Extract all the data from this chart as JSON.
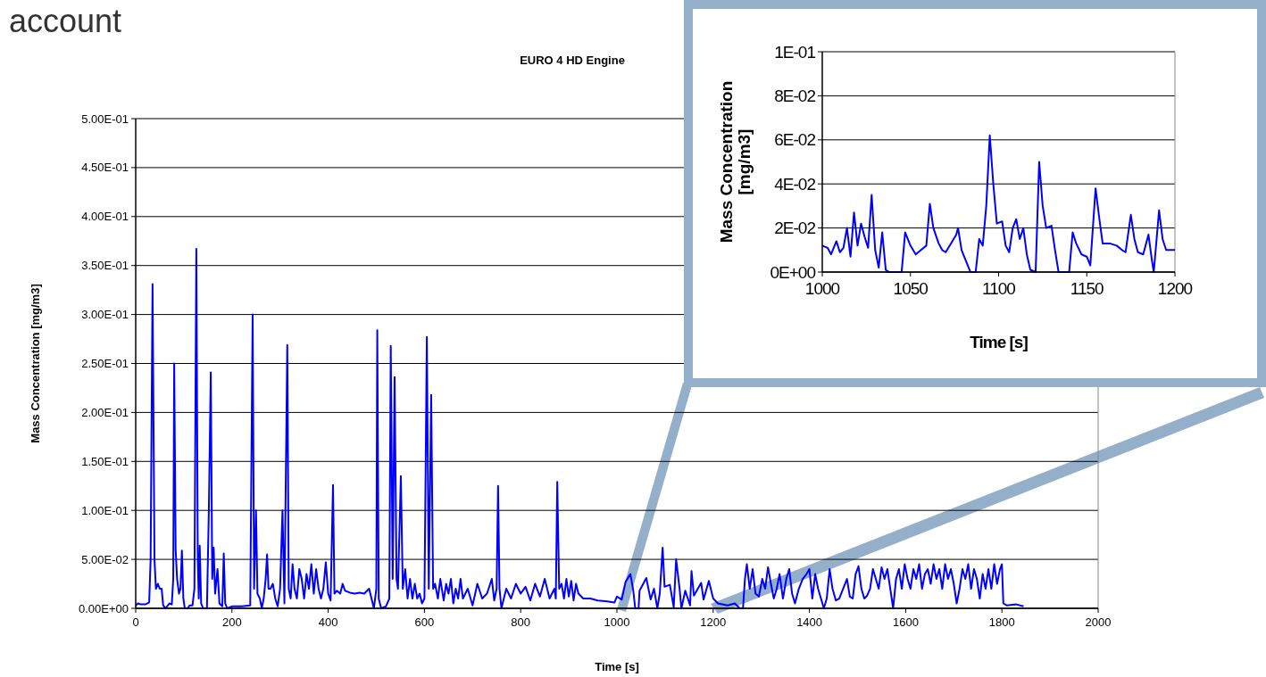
{
  "chart_data": [
    {
      "type": "line",
      "title": "EURO 4 HD Engine",
      "xlabel": "Time [s]",
      "ylabel": "Mass Concentration [mg/m3]",
      "annotations": [
        "account"
      ],
      "xlim": [
        0,
        2000
      ],
      "xticks": [
        0,
        200,
        400,
        600,
        800,
        1000,
        1200,
        1400,
        1600,
        1800,
        2000
      ],
      "ylim": [
        0,
        0.5
      ],
      "yticks": [
        {
          "value": 0,
          "label": "0.00E+00"
        },
        {
          "value": 0.05,
          "label": "5.00E-02"
        },
        {
          "value": 0.1,
          "label": "1.00E-01"
        },
        {
          "value": 0.15,
          "label": "1.50E-01"
        },
        {
          "value": 0.2,
          "label": "2.00E-01"
        },
        {
          "value": 0.25,
          "label": "2.50E-01"
        },
        {
          "value": 0.3,
          "label": "3.00E-01"
        },
        {
          "value": 0.35,
          "label": "3.50E-01"
        },
        {
          "value": 0.4,
          "label": "4.00E-01"
        },
        {
          "value": 0.45,
          "label": "4.50E-01"
        },
        {
          "value": 0.5,
          "label": "5.00E-01"
        }
      ],
      "grid": "y",
      "x": [
        0,
        5,
        10,
        20,
        28,
        31,
        35,
        39,
        42,
        46,
        50,
        54,
        57,
        62,
        70,
        75,
        78,
        80,
        83,
        86,
        90,
        93,
        96,
        99,
        102,
        108,
        112,
        118,
        122,
        126,
        129,
        131,
        133,
        136,
        140,
        148,
        152,
        156,
        159,
        162,
        165,
        170,
        174,
        180,
        183,
        186,
        190,
        200,
        220,
        238,
        243,
        246,
        250,
        253,
        258,
        262,
        266,
        270,
        273,
        276,
        280,
        285,
        290,
        295,
        300,
        305,
        309,
        315,
        318,
        322,
        326,
        330,
        335,
        340,
        345,
        350,
        355,
        360,
        365,
        370,
        375,
        380,
        385,
        390,
        395,
        400,
        405,
        410,
        413,
        418,
        425,
        430,
        435,
        445,
        455,
        465,
        475,
        485,
        490,
        495,
        500,
        502,
        505,
        510,
        520,
        527,
        530,
        534,
        538,
        542,
        545,
        551,
        555,
        560,
        565,
        570,
        575,
        580,
        585,
        590,
        595,
        600,
        605,
        609,
        614,
        618,
        622,
        628,
        633,
        640,
        645,
        650,
        655,
        660,
        665,
        670,
        675,
        680,
        690,
        700,
        710,
        720,
        730,
        740,
        745,
        750,
        753,
        756,
        760,
        770,
        780,
        790,
        800,
        810,
        820,
        830,
        840,
        850,
        860,
        870,
        873,
        876,
        880,
        885,
        890,
        895,
        900,
        905,
        910,
        915,
        920,
        930,
        945,
        960,
        980,
        995,
        1000,
        1010,
        1018,
        1028,
        1034,
        1038,
        1045,
        1047,
        1061,
        1070,
        1077,
        1084,
        1089,
        1095,
        1099,
        1110,
        1118,
        1123,
        1130,
        1134,
        1142,
        1152,
        1155,
        1160,
        1175,
        1180,
        1191,
        1200,
        1210,
        1230,
        1245,
        1255,
        1262,
        1266,
        1270,
        1276,
        1282,
        1288,
        1295,
        1302,
        1308,
        1314,
        1320,
        1326,
        1332,
        1338,
        1345,
        1352,
        1358,
        1364,
        1370,
        1378,
        1386,
        1394,
        1400,
        1406,
        1412,
        1418,
        1424,
        1430,
        1436,
        1442,
        1448,
        1455,
        1462,
        1470,
        1478,
        1484,
        1490,
        1496,
        1502,
        1508,
        1514,
        1520,
        1526,
        1532,
        1538,
        1544,
        1550,
        1556,
        1562,
        1568,
        1574,
        1580,
        1586,
        1592,
        1598,
        1604,
        1610,
        1616,
        1622,
        1628,
        1634,
        1640,
        1646,
        1652,
        1658,
        1664,
        1670,
        1676,
        1682,
        1688,
        1694,
        1700,
        1706,
        1712,
        1718,
        1724,
        1730,
        1736,
        1742,
        1748,
        1754,
        1760,
        1766,
        1772,
        1778,
        1784,
        1790,
        1796,
        1800,
        1803,
        1810,
        1830,
        1845
      ],
      "series": [
        {
          "color": "#0000ff",
          "values": [
            0.003,
            0.005,
            0.004,
            0.004,
            0.006,
            0.05,
            0.331,
            0.05,
            0.02,
            0.025,
            0.02,
            0.02,
            0.003,
            0,
            0.005,
            0.004,
            0.03,
            0.25,
            0.06,
            0.03,
            0.015,
            0.02,
            0.059,
            0.01,
            0,
            0,
            0.003,
            0.003,
            0.02,
            0.367,
            0.05,
            0.01,
            0.064,
            0.005,
            0,
            0,
            0.1,
            0.241,
            0.03,
            0.062,
            0.015,
            0.04,
            0.005,
            0.002,
            0.056,
            0.005,
            0,
            0.002,
            0.002,
            0.003,
            0.3,
            0.02,
            0.1,
            0.015,
            0.01,
            0,
            0.01,
            0.03,
            0.055,
            0.02,
            0.02,
            0.025,
            0.01,
            0.002,
            0.02,
            0.1,
            0.005,
            0.269,
            0.02,
            0.01,
            0.045,
            0.02,
            0.01,
            0.04,
            0.03,
            0.01,
            0.035,
            0.02,
            0.045,
            0.015,
            0.04,
            0.02,
            0.01,
            0.02,
            0.047,
            0.015,
            0.008,
            0.126,
            0.015,
            0.018,
            0.015,
            0.025,
            0.018,
            0.016,
            0.015,
            0.016,
            0.015,
            0.02,
            0.01,
            0,
            0.02,
            0.284,
            0.01,
            0,
            0.002,
            0.01,
            0.268,
            0.03,
            0.236,
            0.03,
            0.02,
            0.135,
            0.02,
            0.04,
            0.01,
            0.03,
            0.01,
            0.025,
            0.01,
            0.015,
            0.005,
            0.01,
            0.277,
            0.02,
            0.218,
            0.02,
            0.025,
            0.01,
            0.03,
            0.008,
            0.025,
            0.015,
            0.03,
            0.005,
            0.02,
            0.01,
            0.03,
            0.01,
            0.02,
            0.003,
            0.025,
            0.01,
            0.015,
            0.03,
            0.008,
            0.02,
            0.125,
            0.02,
            0,
            0.02,
            0.01,
            0.025,
            0.015,
            0.022,
            0.008,
            0.025,
            0.012,
            0.03,
            0.01,
            0.02,
            0.01,
            0.129,
            0.02,
            0.025,
            0.01,
            0.03,
            0.012,
            0.028,
            0.008,
            0.025,
            0.015,
            0.01,
            0.01,
            0.008,
            0.007,
            0.006,
            0.012,
            0.009,
            0.027,
            0.035,
            0.018,
            0,
            0,
            0.018,
            0.031,
            0.009,
            0.02,
            0,
            0.015,
            0.062,
            0.022,
            0.024,
            0.001,
            0.05,
            0.021,
            0,
            0.018,
            0.003,
            0.038,
            0.013,
            0.026,
            0.009,
            0.028,
            0.01,
            0.005,
            0.003,
            0.005,
            0,
            0,
            0.03,
            0.045,
            0.02,
            0.04,
            0.015,
            0.012,
            0.03,
            0.02,
            0.042,
            0.025,
            0.01,
            0.02,
            0.035,
            0.01,
            0.03,
            0.04,
            0.015,
            0.005,
            0.02,
            0.03,
            0.035,
            0.04,
            0.01,
            0.035,
            0.02,
            0.01,
            0,
            0.01,
            0.04,
            0.02,
            0.008,
            0.01,
            0.02,
            0.03,
            0.012,
            0.01,
            0.035,
            0.043,
            0.02,
            0.01,
            0.013,
            0.02,
            0.04,
            0.03,
            0.02,
            0.042,
            0.03,
            0.04,
            0.02,
            0,
            0.03,
            0.04,
            0.02,
            0.045,
            0.03,
            0.02,
            0.04,
            0.03,
            0.045,
            0.02,
            0.035,
            0.04,
            0.025,
            0.045,
            0.03,
            0.04,
            0.02,
            0.045,
            0.03,
            0.04,
            0.025,
            0.005,
            0.02,
            0.04,
            0.03,
            0.045,
            0.02,
            0.04,
            0.03,
            0.01,
            0.035,
            0.02,
            0.04,
            0.02,
            0.045,
            0.025,
            0.04,
            0.045,
            0.005,
            0.003,
            0.004,
            0.002
          ]
        }
      ]
    },
    {
      "type": "line",
      "xlabel": "Time [s]",
      "ylabel": "Mass Concentration [mg/m3]",
      "xlim": [
        1000,
        1200
      ],
      "xticks": [
        1000,
        1050,
        1100,
        1150,
        1200
      ],
      "ylim": [
        0,
        0.1
      ],
      "yticks": [
        {
          "value": 0,
          "label": "0E+00"
        },
        {
          "value": 0.02,
          "label": "2E-02"
        },
        {
          "value": 0.04,
          "label": "4E-02"
        },
        {
          "value": 0.06,
          "label": "6E-02"
        },
        {
          "value": 0.08,
          "label": "8E-02"
        },
        {
          "value": 0.1,
          "label": "1E-01"
        }
      ],
      "grid": "y",
      "x": [
        1000,
        1003,
        1005,
        1008,
        1010,
        1012,
        1014,
        1016,
        1018,
        1020,
        1022,
        1024,
        1026,
        1028,
        1030,
        1032,
        1034,
        1036,
        1038,
        1045,
        1047,
        1050,
        1053,
        1056,
        1059,
        1061,
        1063,
        1066,
        1068,
        1070,
        1073,
        1076,
        1077,
        1079,
        1082,
        1084,
        1087,
        1089,
        1091,
        1093,
        1095,
        1097,
        1099,
        1102,
        1104,
        1106,
        1108,
        1110,
        1112,
        1114,
        1116,
        1118,
        1121,
        1123,
        1125,
        1127,
        1130,
        1132,
        1134,
        1140,
        1142,
        1144,
        1147,
        1150,
        1152,
        1155,
        1157,
        1159,
        1163,
        1167,
        1170,
        1172,
        1175,
        1177,
        1179,
        1182,
        1185,
        1187,
        1188,
        1191,
        1193,
        1195,
        1200
      ],
      "series": [
        {
          "color": "#0000ff",
          "values": [
            0.012,
            0.011,
            0.008,
            0.014,
            0.009,
            0.011,
            0.02,
            0.007,
            0.027,
            0.012,
            0.022,
            0.016,
            0.011,
            0.035,
            0.01,
            0.002,
            0.018,
            0.001,
            0,
            0,
            0.018,
            0.012,
            0.008,
            0.01,
            0.012,
            0.031,
            0.02,
            0.013,
            0.01,
            0.009,
            0.013,
            0.017,
            0.02,
            0.01,
            0.004,
            0,
            0,
            0.015,
            0.012,
            0.03,
            0.062,
            0.04,
            0.022,
            0.023,
            0.012,
            0.009,
            0.02,
            0.024,
            0.015,
            0.02,
            0.008,
            0.001,
            0,
            0.05,
            0.03,
            0.02,
            0.021,
            0.01,
            0,
            0,
            0.018,
            0.013,
            0.008,
            0.007,
            0.003,
            0.038,
            0.025,
            0.013,
            0.013,
            0.012,
            0.01,
            0.009,
            0.026,
            0.015,
            0.009,
            0.008,
            0.017,
            0.005,
            0,
            0.028,
            0.015,
            0.01,
            0.01
          ]
        }
      ]
    }
  ]
}
